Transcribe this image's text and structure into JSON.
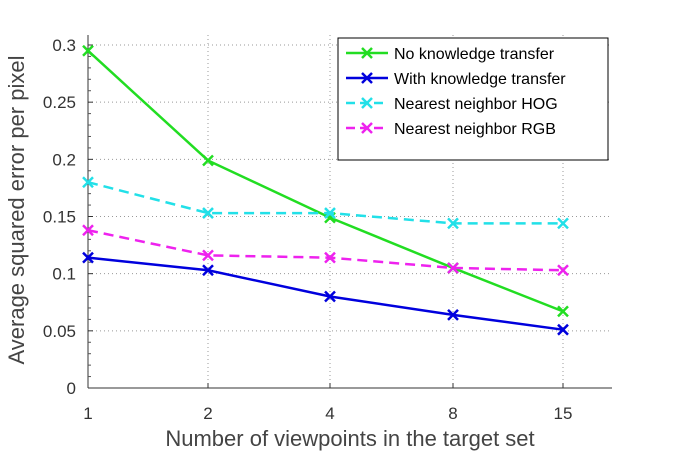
{
  "chart_data": {
    "type": "line",
    "x": [
      "1",
      "2",
      "4",
      "8",
      "15"
    ],
    "xlabel": "Number of viewpoints in the target set",
    "ylabel": "Average squared error per pixel",
    "ylim": [
      0,
      0.3
    ],
    "yticks": [
      "0",
      "0.05",
      "0.1",
      "0.15",
      "0.2",
      "0.25",
      "0.3"
    ],
    "grid": true,
    "legend_position": "top-right",
    "series": [
      {
        "name": "No knowledge transfer",
        "values": [
          0.295,
          0.199,
          0.149,
          0.105,
          0.067
        ],
        "color": "#22dd22",
        "style": "solid",
        "marker": "x"
      },
      {
        "name": "With knowledge transfer",
        "values": [
          0.114,
          0.103,
          0.08,
          0.064,
          0.051
        ],
        "color": "#0000dd",
        "style": "solid",
        "marker": "x"
      },
      {
        "name": "Nearest neighbor HOG",
        "values": [
          0.18,
          0.153,
          0.153,
          0.144,
          0.144
        ],
        "color": "#22e0e8",
        "style": "dashed",
        "marker": "x"
      },
      {
        "name": "Nearest neighbor RGB",
        "values": [
          0.138,
          0.116,
          0.114,
          0.105,
          0.103
        ],
        "color": "#ee22ee",
        "style": "dashed",
        "marker": "x"
      }
    ]
  }
}
